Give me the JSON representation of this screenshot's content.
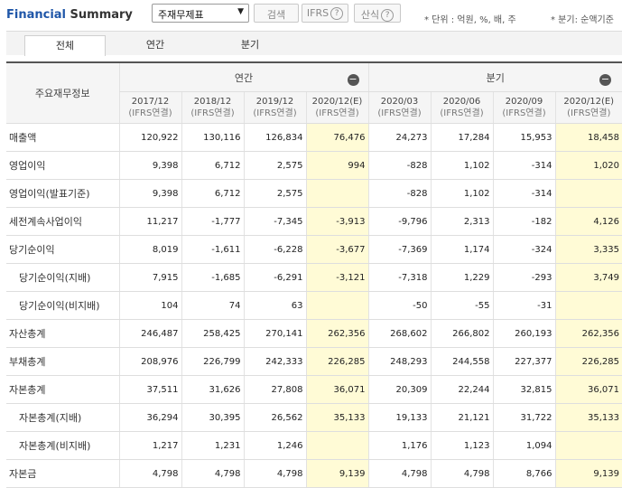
{
  "header": {
    "title_part1": "Financial",
    "title_part2": " Summary",
    "select_value": "주재무제표",
    "search_label": "검색",
    "ifrs_label": "IFRS",
    "formula_label": "산식",
    "unit_note": "* 단위 : 억원, %, 배, 주",
    "quarter_note": "* 분기: 순액기준"
  },
  "tabs": [
    "전체",
    "연간",
    "분기"
  ],
  "table": {
    "corner_label": "주요재무정보",
    "annual_group": "연간",
    "quarter_group": "분기",
    "periods": [
      {
        "date": "2017/12",
        "basis": "(IFRS연결)"
      },
      {
        "date": "2018/12",
        "basis": "(IFRS연결)"
      },
      {
        "date": "2019/12",
        "basis": "(IFRS연결)"
      },
      {
        "date": "2020/12(E)",
        "basis": "(IFRS연결)"
      },
      {
        "date": "2020/03",
        "basis": "(IFRS연결)"
      },
      {
        "date": "2020/06",
        "basis": "(IFRS연결)"
      },
      {
        "date": "2020/09",
        "basis": "(IFRS연결)"
      },
      {
        "date": "2020/12(E)",
        "basis": "(IFRS연결)"
      }
    ],
    "rows": [
      {
        "label": "매출액",
        "indent": false,
        "values": [
          "120,922",
          "130,116",
          "126,834",
          "76,476",
          "24,273",
          "17,284",
          "15,953",
          "18,458"
        ]
      },
      {
        "label": "영업이익",
        "indent": false,
        "values": [
          "9,398",
          "6,712",
          "2,575",
          "994",
          "-828",
          "1,102",
          "-314",
          "1,020"
        ]
      },
      {
        "label": "영업이익(발표기준)",
        "indent": false,
        "values": [
          "9,398",
          "6,712",
          "2,575",
          "",
          "-828",
          "1,102",
          "-314",
          ""
        ]
      },
      {
        "label": "세전계속사업이익",
        "indent": false,
        "values": [
          "11,217",
          "-1,777",
          "-7,345",
          "-3,913",
          "-9,796",
          "2,313",
          "-182",
          "4,126"
        ]
      },
      {
        "label": "당기순이익",
        "indent": false,
        "values": [
          "8,019",
          "-1,611",
          "-6,228",
          "-3,677",
          "-7,369",
          "1,174",
          "-324",
          "3,335"
        ]
      },
      {
        "label": "당기순이익(지배)",
        "indent": true,
        "values": [
          "7,915",
          "-1,685",
          "-6,291",
          "-3,121",
          "-7,318",
          "1,229",
          "-293",
          "3,749"
        ]
      },
      {
        "label": "당기순이익(비지배)",
        "indent": true,
        "values": [
          "104",
          "74",
          "63",
          "",
          "-50",
          "-55",
          "-31",
          ""
        ]
      },
      {
        "label": "자산총계",
        "indent": false,
        "values": [
          "246,487",
          "258,425",
          "270,141",
          "262,356",
          "268,602",
          "266,802",
          "260,193",
          "262,356"
        ]
      },
      {
        "label": "부채총계",
        "indent": false,
        "values": [
          "208,976",
          "226,799",
          "242,333",
          "226,285",
          "248,293",
          "244,558",
          "227,377",
          "226,285"
        ]
      },
      {
        "label": "자본총계",
        "indent": false,
        "values": [
          "37,511",
          "31,626",
          "27,808",
          "36,071",
          "20,309",
          "22,244",
          "32,815",
          "36,071"
        ]
      },
      {
        "label": "자본총계(지배)",
        "indent": true,
        "values": [
          "36,294",
          "30,395",
          "26,562",
          "35,133",
          "19,133",
          "21,121",
          "31,722",
          "35,133"
        ]
      },
      {
        "label": "자본총계(비지배)",
        "indent": true,
        "values": [
          "1,217",
          "1,231",
          "1,246",
          "",
          "1,176",
          "1,123",
          "1,094",
          ""
        ]
      },
      {
        "label": "자본금",
        "indent": false,
        "values": [
          "4,798",
          "4,798",
          "4,798",
          "9,139",
          "4,798",
          "4,798",
          "8,766",
          "9,139"
        ]
      }
    ]
  },
  "colors": {
    "title_accent": "#1f56a8",
    "negative": "#e3312e",
    "estimate_bg": "#fffbd6"
  }
}
